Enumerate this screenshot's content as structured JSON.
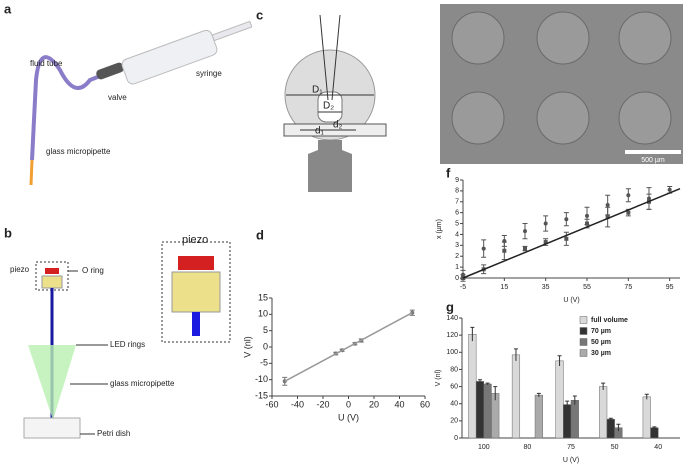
{
  "figure": {
    "panel_labels": [
      "a",
      "b",
      "c",
      "d",
      "e",
      "f",
      "g"
    ],
    "a": [
      "fluid tube",
      "valve",
      "syringe",
      "glass micropipette"
    ],
    "b": [
      "piezo",
      "O ring",
      "piezo",
      "LED rings",
      "glass micropipette",
      "Petri dish"
    ],
    "c": [
      "D₁",
      "D₂",
      "d₁",
      "d₂"
    ],
    "e": [
      "500 µm"
    ]
  },
  "chart_data": [
    {
      "type": "scatter",
      "xlabel": "U (V)",
      "ylabel": "V (nl)",
      "xlim": [
        -60,
        60
      ],
      "xticks": [
        -60,
        -40,
        -20,
        0,
        20,
        40,
        60
      ],
      "ylim": [
        -15,
        15
      ],
      "yticks": [
        -15,
        -10,
        -5,
        0,
        5,
        10,
        15
      ],
      "series": [
        {
          "mode": "markers",
          "color": "#777777",
          "x": [
            -50,
            -10,
            -5,
            5,
            10,
            50
          ],
          "values": [
            -10.5,
            -2,
            -1,
            1,
            2,
            10.5
          ],
          "errors": [
            1.2,
            0.4,
            0.3,
            0.3,
            0.5,
            0.8
          ]
        },
        {
          "mode": "line",
          "color": "#999999",
          "x": [
            -50,
            50
          ],
          "values": [
            -10.5,
            10.5
          ]
        }
      ]
    },
    {
      "type": "scatter",
      "xlabel": "U (V)",
      "ylabel": "x (µm)",
      "xlim": [
        -5,
        100
      ],
      "xticks": [
        -5,
        15,
        35,
        55,
        75,
        95
      ],
      "ylim": [
        0,
        9
      ],
      "yticks": [
        0,
        1,
        2,
        3,
        4,
        5,
        6,
        7,
        8,
        9
      ],
      "series": [
        {
          "mode": "markers",
          "marker": "circle",
          "color": "#555555",
          "x": [
            -5,
            5,
            15,
            25,
            35,
            45,
            55,
            65,
            75,
            85,
            95
          ],
          "values": [
            0.3,
            2.7,
            3.4,
            4.3,
            5,
            5.4,
            5.7,
            6.7,
            7.6,
            7.3,
            8.1
          ],
          "errors": [
            0.4,
            0.8,
            0.5,
            0.7,
            0.7,
            0.6,
            0.8,
            0.9,
            0.6,
            1,
            0.3
          ]
        },
        {
          "mode": "markers",
          "marker": "square",
          "color": "#555555",
          "x": [
            -5,
            5,
            15,
            25,
            35,
            45,
            55,
            65,
            75,
            85
          ],
          "values": [
            0,
            0.8,
            2.5,
            2.7,
            3.3,
            3.6,
            5,
            5.6,
            6,
            7
          ],
          "errors": [
            0.3,
            0.4,
            0.8,
            0.2,
            0.3,
            0.6,
            0.4,
            0.9,
            0.3,
            0.7
          ]
        },
        {
          "mode": "line",
          "color": "#222222",
          "x": [
            -5,
            100
          ],
          "values": [
            0,
            8.2
          ]
        }
      ]
    },
    {
      "type": "bar",
      "xlabel": "U (V)",
      "ylabel": "V (nl)",
      "categories": [
        "100",
        "80",
        "75",
        "50",
        "40"
      ],
      "ylim": [
        0,
        140
      ],
      "yticks": [
        0,
        20,
        40,
        60,
        80,
        100,
        120,
        140
      ],
      "legend": "upper right",
      "series": [
        {
          "name": "full volume",
          "color": "#d9d9d9",
          "values": [
            121,
            97,
            90,
            60,
            48
          ],
          "errors": [
            8,
            7,
            6,
            4,
            3
          ]
        },
        {
          "name": "70 µm",
          "color": "#333333",
          "values": [
            66,
            null,
            39,
            22,
            12
          ],
          "errors": [
            2,
            null,
            4,
            1,
            1
          ]
        },
        {
          "name": "50 µm",
          "color": "#777777",
          "values": [
            63,
            null,
            44,
            12,
            null
          ],
          "errors": [
            1,
            null,
            5,
            4,
            null
          ]
        },
        {
          "name": "30 µm",
          "color": "#aaaaaa",
          "values": [
            52,
            50,
            null,
            null,
            null
          ],
          "errors": [
            8,
            2,
            null,
            null,
            null
          ]
        }
      ]
    }
  ]
}
